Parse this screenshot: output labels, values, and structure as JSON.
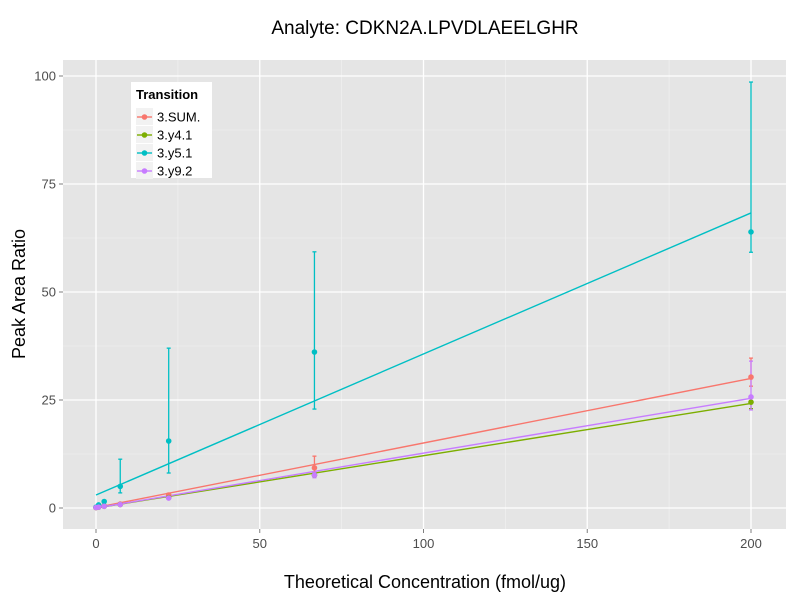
{
  "chart_data": {
    "type": "scatter",
    "title": "Analyte: CDKN2A.LPVDLAEELGHR",
    "xlabel": "Theoretical Concentration (fmol/ug)",
    "ylabel": "Peak Area Ratio",
    "xlim": [
      -10,
      210
    ],
    "ylim": [
      -5,
      104
    ],
    "xticks": [
      0,
      50,
      100,
      150,
      200
    ],
    "yticks": [
      0,
      25,
      50,
      75,
      100
    ],
    "xtick_labels": [
      "0",
      "50",
      "100",
      "150",
      "200"
    ],
    "ytick_labels": [
      "0",
      "25",
      "50",
      "75",
      "100"
    ],
    "grid": true,
    "legend": {
      "title": "Transition",
      "position": "top-left"
    },
    "series": [
      {
        "name": "3.SUM.",
        "color": "#F8766D",
        "x": [
          0,
          0.8,
          2.5,
          7.4,
          22.2,
          66.7,
          200
        ],
        "y": [
          0.1,
          0.3,
          0.5,
          0.9,
          3.0,
          9.3,
          30.3
        ],
        "ymin": [
          0.0,
          0.2,
          0.4,
          0.7,
          2.6,
          7.5,
          28.2
        ],
        "ymax": [
          0.2,
          0.4,
          0.6,
          1.1,
          3.4,
          12.0,
          34.7
        ],
        "fit": [
          0.1,
          30.0
        ]
      },
      {
        "name": "3.y4.1",
        "color": "#7CAE00",
        "x": [
          0,
          0.8,
          2.5,
          7.4,
          22.2,
          66.7,
          200
        ],
        "y": [
          0.1,
          0.2,
          0.4,
          0.8,
          2.4,
          7.6,
          24.5
        ],
        "ymin": [
          0.0,
          0.1,
          0.3,
          0.7,
          2.2,
          7.2,
          23.0
        ],
        "ymax": [
          0.2,
          0.3,
          0.5,
          0.9,
          2.6,
          8.0,
          26.0
        ],
        "fit": [
          0.0,
          24.2
        ]
      },
      {
        "name": "3.y5.1",
        "color": "#00BFC4",
        "x": [
          0,
          0.8,
          2.5,
          7.4,
          22.2,
          66.7,
          200
        ],
        "y": [
          0.2,
          0.7,
          1.5,
          5.0,
          15.5,
          36.1,
          63.9
        ],
        "ymin": [
          0.1,
          0.5,
          1.2,
          3.5,
          8.1,
          22.9,
          59.2
        ],
        "ymax": [
          0.3,
          0.9,
          1.8,
          11.3,
          37.0,
          59.3,
          98.6
        ],
        "fit": [
          3.0,
          68.3
        ]
      },
      {
        "name": "3.y9.2",
        "color": "#C77CFF",
        "x": [
          0,
          0.8,
          2.5,
          7.4,
          22.2,
          66.7,
          200
        ],
        "y": [
          0.1,
          0.2,
          0.4,
          0.8,
          2.3,
          7.6,
          25.7
        ],
        "ymin": [
          0.0,
          0.1,
          0.3,
          0.7,
          2.1,
          7.0,
          22.7
        ],
        "ymax": [
          0.2,
          0.3,
          0.5,
          0.9,
          2.5,
          8.3,
          34.0
        ],
        "fit": [
          0.0,
          25.4
        ]
      }
    ]
  }
}
